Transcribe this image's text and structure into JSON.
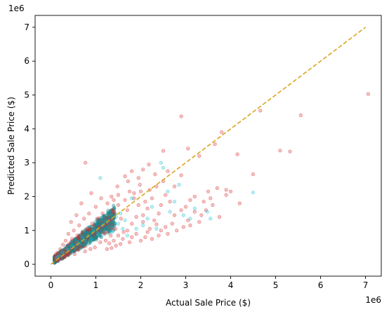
{
  "chart_data": {
    "type": "scatter",
    "xlabel": "Actual Sale Price ($)",
    "ylabel": "Predicted Sale Price ($)",
    "x_offset_label": "1e6",
    "y_offset_label": "1e6",
    "xlim": [
      -350000,
      7350000
    ],
    "ylim": [
      -350000,
      7350000
    ],
    "xticks": [
      0,
      1,
      2,
      3,
      4,
      5,
      6,
      7
    ],
    "yticks": [
      0,
      1,
      2,
      3,
      4,
      5,
      6,
      7
    ],
    "grid": false,
    "colors": {
      "series_red": "#d62728",
      "series_teal": "#17becf",
      "dense_teal": "#1a8a8f",
      "reference_line": "#daa520"
    },
    "reference_line": {
      "x": [
        0,
        7000000
      ],
      "y": [
        0,
        7000000
      ],
      "style": "dashed"
    },
    "series": [
      {
        "marker_color": "red",
        "points": [
          [
            7060000,
            5030000
          ],
          [
            5560000,
            4400000
          ],
          [
            5100000,
            3360000
          ],
          [
            5320000,
            3330000
          ],
          [
            4660000,
            4540000
          ],
          [
            4500000,
            2660000
          ],
          [
            4150000,
            3250000
          ],
          [
            3800000,
            3900000
          ],
          [
            3650000,
            3550000
          ],
          [
            2900000,
            4370000
          ],
          [
            3300000,
            3200000
          ],
          [
            3050000,
            3420000
          ],
          [
            2900000,
            2630000
          ],
          [
            2750000,
            2300000
          ],
          [
            2600000,
            2750000
          ],
          [
            2500000,
            3350000
          ],
          [
            2320000,
            2660000
          ],
          [
            2180000,
            2950000
          ],
          [
            2050000,
            2800000
          ],
          [
            1950000,
            2550000
          ],
          [
            1800000,
            2750000
          ],
          [
            1720000,
            2450000
          ],
          [
            1650000,
            2600000
          ],
          [
            3500000,
            2150000
          ],
          [
            3700000,
            2250000
          ],
          [
            3900000,
            2200000
          ],
          [
            3550000,
            1950000
          ],
          [
            3400000,
            1850000
          ],
          [
            3200000,
            2000000
          ],
          [
            3100000,
            1900000
          ],
          [
            3000000,
            1700000
          ],
          [
            3200000,
            1550000
          ],
          [
            3350000,
            1450000
          ],
          [
            3050000,
            1300000
          ],
          [
            2900000,
            1600000
          ],
          [
            2750000,
            1450000
          ],
          [
            2650000,
            1850000
          ],
          [
            2550000,
            2050000
          ],
          [
            2450000,
            1750000
          ],
          [
            2400000,
            1500000
          ],
          [
            2300000,
            1300000
          ],
          [
            2250000,
            1950000
          ],
          [
            2150000,
            1650000
          ],
          [
            2100000,
            1850000
          ],
          [
            2050000,
            1450000
          ],
          [
            2000000,
            2150000
          ],
          [
            2700000,
            1200000
          ],
          [
            2550000,
            1100000
          ],
          [
            2450000,
            1000000
          ],
          [
            2350000,
            1180000
          ],
          [
            2200000,
            1050000
          ],
          [
            2150000,
            950000
          ],
          [
            2050000,
            1250000
          ],
          [
            1950000,
            1750000
          ],
          [
            1900000,
            1400000
          ],
          [
            1850000,
            1950000
          ],
          [
            1800000,
            1200000
          ],
          [
            1750000,
            2150000
          ],
          [
            1700000,
            1600000
          ],
          [
            1650000,
            1900000
          ],
          [
            1620000,
            950000
          ],
          [
            1560000,
            1350000
          ],
          [
            1500000,
            1750000
          ],
          [
            1480000,
            2300000
          ],
          [
            1440000,
            1050000
          ],
          [
            1400000,
            1550000
          ],
          [
            1350000,
            2000000
          ],
          [
            1330000,
            850000
          ],
          [
            1300000,
            1300000
          ],
          [
            1260000,
            1800000
          ],
          [
            1220000,
            700000
          ],
          [
            1200000,
            1150000
          ],
          [
            1150000,
            1500000
          ],
          [
            1120000,
            1950000
          ],
          [
            1100000,
            650000
          ],
          [
            1060000,
            1000000
          ],
          [
            1030000,
            1350000
          ],
          [
            1000000,
            1700000
          ],
          [
            980000,
            500000
          ],
          [
            950000,
            850000
          ],
          [
            920000,
            1200000
          ],
          [
            900000,
            2100000
          ],
          [
            880000,
            450000
          ],
          [
            850000,
            1500000
          ],
          [
            820000,
            750000
          ],
          [
            800000,
            1050000
          ],
          [
            770000,
            3000000
          ],
          [
            760000,
            380000
          ],
          [
            740000,
            1350000
          ],
          [
            720000,
            650000
          ],
          [
            700000,
            950000
          ],
          [
            680000,
            1800000
          ],
          [
            650000,
            550000
          ],
          [
            630000,
            1150000
          ],
          [
            610000,
            420000
          ],
          [
            590000,
            850000
          ],
          [
            570000,
            1450000
          ],
          [
            550000,
            650000
          ],
          [
            530000,
            300000
          ],
          [
            510000,
            1000000
          ],
          [
            490000,
            500000
          ],
          [
            470000,
            750000
          ],
          [
            450000,
            1250000
          ],
          [
            430000,
            350000
          ],
          [
            410000,
            600000
          ],
          [
            390000,
            900000
          ],
          [
            370000,
            280000
          ],
          [
            350000,
            480000
          ],
          [
            330000,
            700000
          ],
          [
            310000,
            220000
          ],
          [
            290000,
            400000
          ],
          [
            270000,
            580000
          ],
          [
            250000,
            200000
          ],
          [
            230000,
            320000
          ],
          [
            210000,
            450000
          ],
          [
            190000,
            170000
          ],
          [
            170000,
            260000
          ],
          [
            150000,
            350000
          ],
          [
            140000,
            140000
          ],
          [
            120000,
            210000
          ],
          [
            110000,
            300000
          ],
          [
            100000,
            120000
          ],
          [
            1900000,
            900000
          ],
          [
            1800000,
            800000
          ],
          [
            1750000,
            650000
          ],
          [
            1700000,
            1000000
          ],
          [
            1600000,
            750000
          ],
          [
            1550000,
            600000
          ],
          [
            1500000,
            850000
          ],
          [
            1450000,
            550000
          ],
          [
            1400000,
            700000
          ],
          [
            1350000,
            480000
          ],
          [
            1300000,
            620000
          ],
          [
            1250000,
            450000
          ],
          [
            2400000,
            850000
          ],
          [
            2600000,
            900000
          ],
          [
            2800000,
            1000000
          ],
          [
            2950000,
            1100000
          ],
          [
            3100000,
            1150000
          ],
          [
            3300000,
            1250000
          ],
          [
            2000000,
            700000
          ],
          [
            2100000,
            800000
          ],
          [
            2250000,
            750000
          ],
          [
            3450000,
            1600000
          ],
          [
            3600000,
            1750000
          ],
          [
            3750000,
            1400000
          ],
          [
            3900000,
            2050000
          ],
          [
            4000000,
            2150000
          ],
          [
            4200000,
            1800000
          ],
          [
            2500000,
            2450000
          ],
          [
            2350000,
            2300000
          ],
          [
            2200000,
            2200000
          ],
          [
            1980000,
            2350000
          ],
          [
            1850000,
            2100000
          ],
          [
            1500000,
            2050000
          ],
          [
            1400000,
            1900000
          ]
        ]
      },
      {
        "marker_color": "teal",
        "points": [
          [
            4500000,
            2120000
          ],
          [
            3100000,
            1350000
          ],
          [
            3480000,
            1550000
          ],
          [
            2750000,
            1850000
          ],
          [
            2500000,
            2850000
          ],
          [
            2450000,
            3000000
          ],
          [
            2600000,
            2150000
          ],
          [
            2250000,
            1700000
          ],
          [
            1800000,
            1950000
          ],
          [
            1650000,
            1300000
          ],
          [
            1600000,
            1050000
          ],
          [
            1550000,
            1500000
          ],
          [
            1500000,
            1200000
          ],
          [
            1450000,
            1400000
          ],
          [
            1350000,
            1100000
          ],
          [
            1250000,
            1250000
          ],
          [
            1100000,
            2550000
          ],
          [
            1150000,
            1150000
          ],
          [
            1050000,
            900000
          ],
          [
            950000,
            1000000
          ],
          [
            900000,
            750000
          ],
          [
            820000,
            850000
          ],
          [
            760000,
            700000
          ],
          [
            700000,
            800000
          ],
          [
            640000,
            600000
          ],
          [
            580000,
            650000
          ],
          [
            520000,
            520000
          ],
          [
            460000,
            550000
          ],
          [
            400000,
            430000
          ],
          [
            350000,
            460000
          ],
          [
            300000,
            330000
          ],
          [
            250000,
            360000
          ],
          [
            200000,
            250000
          ],
          [
            160000,
            230000
          ],
          [
            130000,
            180000
          ],
          [
            2950000,
            1450000
          ],
          [
            3200000,
            1650000
          ],
          [
            2050000,
            1150000
          ],
          [
            1900000,
            1050000
          ],
          [
            2350000,
            1050000
          ],
          [
            1700000,
            850000
          ],
          [
            1350000,
            950000
          ],
          [
            2150000,
            1350000
          ],
          [
            2850000,
            2350000
          ],
          [
            3550000,
            1350000
          ],
          [
            2650000,
            1550000
          ]
        ]
      }
    ]
  }
}
